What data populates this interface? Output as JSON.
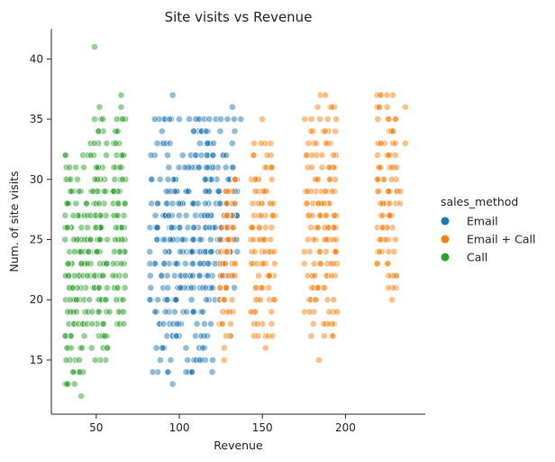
{
  "chart_data": {
    "type": "scatter",
    "title": "Site visits vs Revenue",
    "xlabel": "Revenue",
    "ylabel": "Num. of site visits",
    "xlim": [
      23,
      248
    ],
    "ylim": [
      10.5,
      42.5
    ],
    "xticks": [
      50,
      100,
      150,
      200
    ],
    "yticks": [
      15,
      20,
      25,
      30,
      35,
      40
    ],
    "grid": false,
    "legend": {
      "title": "sales_method",
      "placement": "right"
    },
    "series": [
      {
        "name": "Email",
        "color": "#1f77b4",
        "clusters": [
          {
            "xmin": 82,
            "xmax": 120,
            "ymin": 14,
            "ymax": 35
          },
          {
            "xmin": 115,
            "xmax": 135,
            "ymin": 20,
            "ymax": 34
          }
        ],
        "points": [
          [
            96,
            37
          ],
          [
            96,
            13
          ],
          [
            94,
            35
          ],
          [
            100,
            35
          ],
          [
            106,
            35
          ],
          [
            110,
            35
          ],
          [
            112,
            35
          ],
          [
            115,
            35
          ],
          [
            118,
            35
          ],
          [
            122,
            35
          ],
          [
            125,
            35
          ],
          [
            129,
            35
          ],
          [
            133,
            35
          ],
          [
            137,
            35
          ],
          [
            132,
            36
          ],
          [
            87,
            14
          ],
          [
            84,
            14
          ],
          [
            93,
            14
          ],
          [
            104,
            14
          ],
          [
            105,
            15
          ],
          [
            120,
            15
          ]
        ]
      },
      {
        "name": "Email + Call",
        "color": "#ff7f0e",
        "clusters": [
          {
            "xmin": 124,
            "xmax": 134,
            "ymin": 17,
            "ymax": 30
          },
          {
            "xmin": 143,
            "xmax": 158,
            "ymin": 17,
            "ymax": 33
          },
          {
            "xmin": 175,
            "xmax": 195,
            "ymin": 17,
            "ymax": 36
          },
          {
            "xmin": 219,
            "xmax": 232,
            "ymin": 21,
            "ymax": 37
          }
        ],
        "points": [
          [
            150,
            35
          ],
          [
            152,
            16
          ],
          [
            156,
            17
          ],
          [
            127,
            15
          ],
          [
            127,
            16
          ],
          [
            184,
            15
          ],
          [
            187,
            18
          ],
          [
            185,
            37
          ],
          [
            188,
            37
          ],
          [
            221,
            37
          ],
          [
            225,
            37
          ],
          [
            236,
            36
          ],
          [
            228,
            20
          ],
          [
            226,
            22
          ],
          [
            236,
            33
          ],
          [
            233,
            29
          ],
          [
            233,
            28
          ],
          [
            230,
            35
          ]
        ]
      },
      {
        "name": "Call",
        "color": "#2ca02c",
        "clusters": [
          {
            "xmin": 31,
            "xmax": 44,
            "ymin": 13,
            "ymax": 32
          },
          {
            "xmin": 44,
            "xmax": 57,
            "ymin": 15,
            "ymax": 34
          },
          {
            "xmin": 60,
            "xmax": 68,
            "ymin": 18,
            "ymax": 35
          }
        ],
        "points": [
          [
            49,
            41
          ],
          [
            41,
            12
          ],
          [
            33,
            13
          ],
          [
            37,
            13
          ],
          [
            36,
            14
          ],
          [
            40,
            14
          ],
          [
            65,
            37
          ],
          [
            65,
            36
          ],
          [
            52,
            36
          ],
          [
            49,
            35
          ],
          [
            53,
            35
          ],
          [
            54,
            35
          ],
          [
            66,
            35
          ],
          [
            58,
            19
          ],
          [
            55,
            17
          ]
        ]
      }
    ]
  }
}
